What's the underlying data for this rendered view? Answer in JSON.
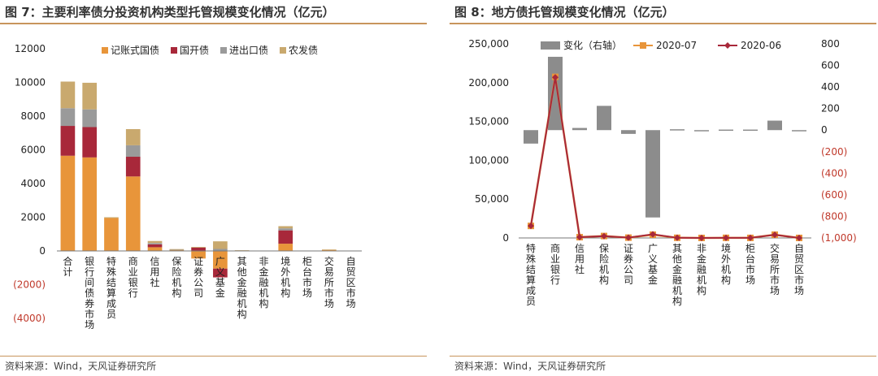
{
  "left_panel": {
    "title": "图 7：主要利率债分投资机构类型托管规模变化情况（亿元）",
    "source": "资料来源：Wind，天风证券研究所"
  },
  "right_panel": {
    "title": "图 8：地方债托管规模变化情况（亿元）",
    "source": "资料来源：Wind，天风证券研究所"
  },
  "chart_data": [
    {
      "type": "bar",
      "stacked": true,
      "title": "",
      "xlabel": "",
      "ylabel": "",
      "categories": [
        "合计",
        "银行间债券市场",
        "特殊结算成员",
        "商业银行",
        "信用社",
        "保险机构",
        "证券公司",
        "广义基金",
        "其他金融机构",
        "非金融机构",
        "境外机构",
        "柜台市场",
        "交易所市场",
        "自贸区市场"
      ],
      "series": [
        {
          "name": "记账式国债",
          "color": "#e8953a",
          "values": [
            5650,
            5550,
            1950,
            4420,
            220,
            60,
            -450,
            -1050,
            30,
            0,
            430,
            0,
            60,
            0
          ]
        },
        {
          "name": "国开债",
          "color": "#a8283a",
          "values": [
            1770,
            1800,
            0,
            1170,
            170,
            0,
            200,
            -520,
            0,
            0,
            790,
            0,
            0,
            0
          ]
        },
        {
          "name": "进出口债",
          "color": "#9a9a9a",
          "values": [
            1050,
            1050,
            0,
            680,
            80,
            10,
            0,
            120,
            0,
            0,
            120,
            0,
            0,
            0
          ]
        },
        {
          "name": "农发债",
          "color": "#c9a96e",
          "values": [
            1580,
            1580,
            50,
            960,
            120,
            40,
            40,
            450,
            10,
            0,
            130,
            0,
            30,
            0
          ]
        }
      ],
      "ylim": [
        -4000,
        12000
      ],
      "yticks": [
        "12000",
        "10000",
        "8000",
        "6000",
        "4000",
        "2000",
        "0",
        "(2000)",
        "(4000)"
      ],
      "legend_position": "top",
      "negative_tick_color": "#c0392b"
    },
    {
      "type": "bar+line",
      "title": "",
      "categories": [
        "特殊结算成员",
        "商业银行",
        "信用社",
        "保险机构",
        "证券公司",
        "广义基金",
        "其他金融机构",
        "非金融机构",
        "境外机构",
        "柜台市场",
        "交易所市场",
        "自贸区市场"
      ],
      "bar_series": {
        "name": "变化（右轴）",
        "axis": "right",
        "color": "#8c8c8c",
        "values": [
          -125,
          680,
          20,
          225,
          -35,
          -810,
          8,
          0,
          5,
          5,
          88,
          0
        ]
      },
      "line_series": [
        {
          "name": "2020-07",
          "axis": "left",
          "color": "#e8953a",
          "values": [
            15500,
            207500,
            1000,
            2500,
            400,
            4200,
            200,
            0,
            150,
            80,
            4200,
            30
          ]
        },
        {
          "name": "2020-06",
          "axis": "left",
          "color": "#a8283a",
          "values": [
            15500,
            206800,
            1000,
            2400,
            400,
            4700,
            200,
            0,
            150,
            80,
            4100,
            30
          ]
        }
      ],
      "left_ylim": [
        0,
        250000
      ],
      "left_yticks": [
        "250,000",
        "200,000",
        "150,000",
        "100,000",
        "50,000",
        "0"
      ],
      "right_ylim": [
        -1000,
        800
      ],
      "right_yticks": [
        "800",
        "600",
        "400",
        "200",
        "0",
        "(200)",
        "(400)",
        "(600)",
        "(800)",
        "(1,000)"
      ],
      "legend_position": "top",
      "negative_tick_color": "#c0392b"
    }
  ]
}
